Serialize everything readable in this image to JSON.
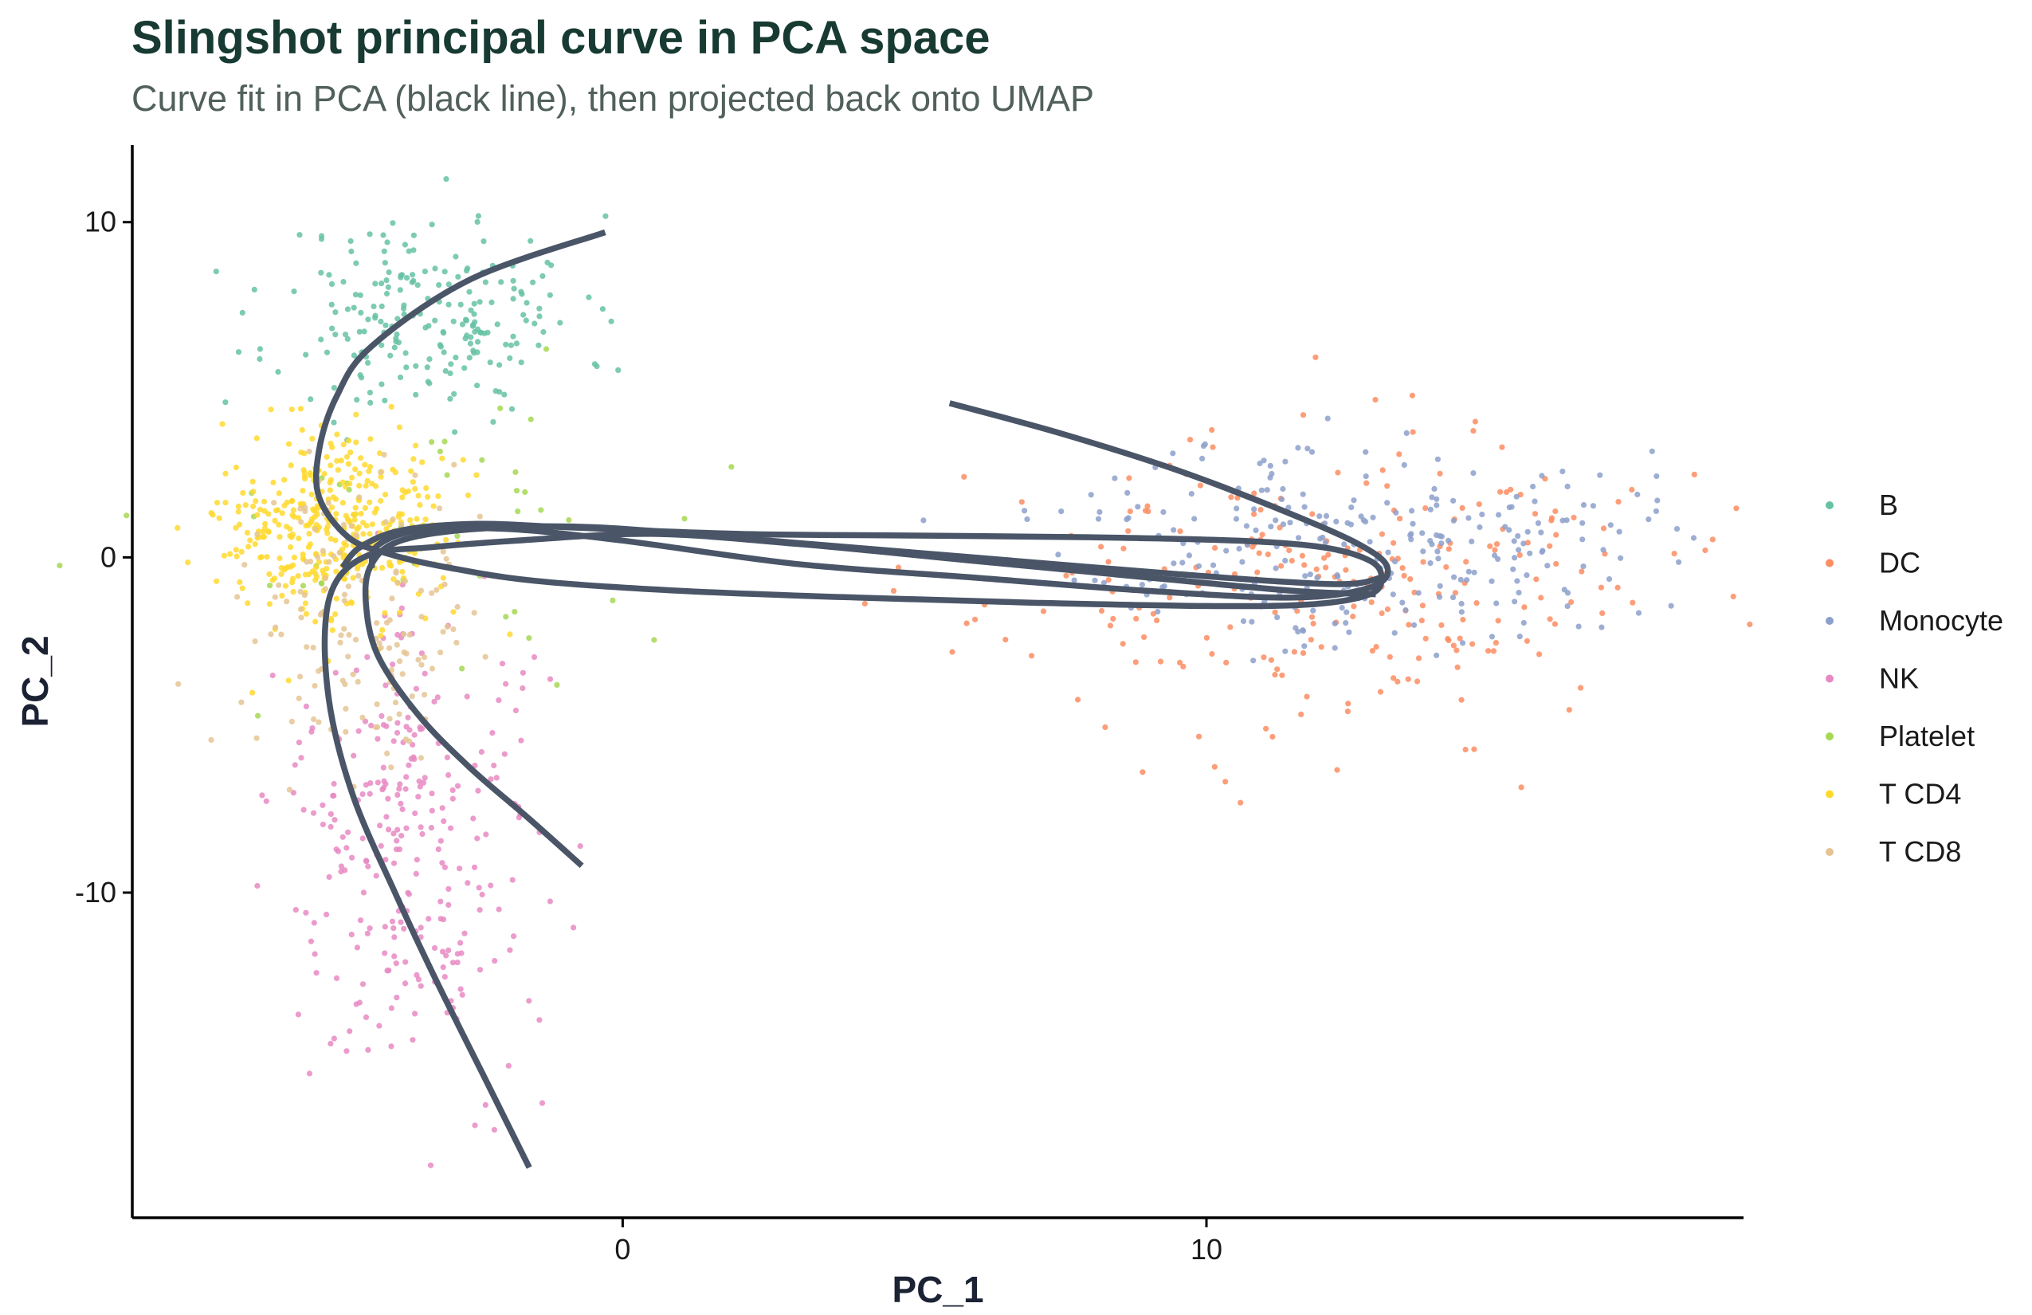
{
  "chart_data": {
    "type": "scatter",
    "title": "Slingshot principal curve in PCA space",
    "subtitle": "Curve fit in PCA (black line), then projected back onto UMAP",
    "xlabel": "PC_1",
    "ylabel": "PC_2",
    "xlim": [
      -8.4,
      19.2
    ],
    "ylim": [
      -19.7,
      12.3
    ],
    "x_ticks": [
      0,
      10
    ],
    "y_ticks": [
      -10,
      0,
      10
    ],
    "grid": false,
    "legend_position": "right",
    "series": [
      {
        "name": "B",
        "color": "#66c2a5",
        "center": [
          -3.3,
          7.2
        ],
        "spread": [
          1.3,
          1.5
        ],
        "n": 220,
        "seed": 11
      },
      {
        "name": "DC",
        "color": "#fc8d62",
        "center": [
          12.0,
          -0.8
        ],
        "spread": [
          2.9,
          2.2
        ],
        "n": 260,
        "seed": 23
      },
      {
        "name": "Monocyte",
        "color": "#8da0cb",
        "center": [
          12.6,
          0.5
        ],
        "spread": [
          2.4,
          1.5
        ],
        "n": 270,
        "seed": 37
      },
      {
        "name": "NK",
        "color": "#e78ac3",
        "center": [
          -3.6,
          -8.4
        ],
        "spread": [
          1.1,
          3.4
        ],
        "n": 280,
        "seed": 41
      },
      {
        "name": "Platelet",
        "color": "#a6d854",
        "center": [
          -3.0,
          1.0
        ],
        "spread": [
          2.5,
          2.4
        ],
        "n": 45,
        "seed": 53
      },
      {
        "name": "T CD4",
        "color": "#ffd92f",
        "center": [
          -5.0,
          0.7
        ],
        "spread": [
          0.9,
          1.4
        ],
        "n": 380,
        "seed": 67
      },
      {
        "name": "T CD8",
        "color": "#e5c494",
        "center": [
          -4.5,
          -1.5
        ],
        "spread": [
          1.0,
          2.2
        ],
        "n": 150,
        "seed": 79
      }
    ],
    "curves": [
      {
        "name": "curve-to-B",
        "color": "#4a5568",
        "points": [
          [
            -0.3,
            9.7
          ],
          [
            -2.6,
            8.3
          ],
          [
            -4.3,
            6.3
          ],
          [
            -4.9,
            4.8
          ],
          [
            -5.2,
            3.2
          ],
          [
            -5.2,
            1.8
          ],
          [
            -4.7,
            0.6
          ],
          [
            -4.0,
            0.1
          ],
          [
            -3.0,
            -0.3
          ],
          [
            -1.5,
            -0.7
          ],
          [
            1.0,
            -1.0
          ],
          [
            4.0,
            -1.2
          ],
          [
            7.0,
            -1.35
          ],
          [
            10.0,
            -1.45
          ],
          [
            11.8,
            -1.4
          ],
          [
            12.8,
            -1.1
          ],
          [
            13.0,
            -0.6
          ],
          [
            12.8,
            -0.1
          ],
          [
            12.0,
            0.3
          ],
          [
            10.5,
            0.5
          ],
          [
            8.0,
            0.6
          ],
          [
            5.0,
            0.65
          ],
          [
            2.0,
            0.7
          ],
          [
            -1.0,
            0.9
          ],
          [
            -2.5,
            1.0
          ],
          [
            -3.8,
            0.8
          ],
          [
            -4.5,
            0.3
          ],
          [
            -4.8,
            -0.3
          ]
        ]
      },
      {
        "name": "curve-to-Monocyte",
        "color": "#4a5568",
        "points": [
          [
            5.6,
            4.6
          ],
          [
            7.5,
            3.7
          ],
          [
            9.5,
            2.6
          ],
          [
            11.3,
            1.4
          ],
          [
            12.6,
            0.4
          ],
          [
            13.1,
            -0.3
          ],
          [
            12.8,
            -0.9
          ],
          [
            11.5,
            -1.2
          ],
          [
            9.0,
            -1.0
          ],
          [
            6.0,
            -0.6
          ],
          [
            3.0,
            -0.2
          ],
          [
            0.0,
            0.5
          ],
          [
            -2.0,
            0.85
          ],
          [
            -3.5,
            0.8
          ],
          [
            -4.2,
            0.35
          ],
          [
            -4.3,
            -0.3
          ]
        ]
      },
      {
        "name": "curve-to-NK",
        "color": "#4a5568",
        "points": [
          [
            -1.6,
            -18.2
          ],
          [
            -2.4,
            -15.4
          ],
          [
            -3.2,
            -12.6
          ],
          [
            -3.9,
            -10.0
          ],
          [
            -4.6,
            -7.2
          ],
          [
            -5.0,
            -4.6
          ],
          [
            -5.1,
            -2.2
          ],
          [
            -4.9,
            -0.7
          ],
          [
            -4.3,
            0.1
          ],
          [
            -3.3,
            0.3
          ],
          [
            -1.8,
            0.5
          ],
          [
            0.5,
            0.7
          ],
          [
            3.0,
            0.4
          ],
          [
            6.0,
            -0.1
          ],
          [
            9.0,
            -0.6
          ],
          [
            11.5,
            -1.0
          ],
          [
            12.9,
            -1.1
          ]
        ]
      },
      {
        "name": "curve-to-T",
        "color": "#4a5568",
        "points": [
          [
            -0.7,
            -9.2
          ],
          [
            -1.6,
            -7.8
          ],
          [
            -2.6,
            -6.3
          ],
          [
            -3.5,
            -4.7
          ],
          [
            -4.2,
            -2.9
          ],
          [
            -4.4,
            -1.3
          ],
          [
            -4.3,
            -0.2
          ],
          [
            -3.8,
            0.5
          ],
          [
            -2.5,
            0.85
          ],
          [
            -0.5,
            0.9
          ],
          [
            2.5,
            0.5
          ],
          [
            6.0,
            0.0
          ],
          [
            9.5,
            -0.5
          ],
          [
            12.2,
            -0.8
          ],
          [
            13.0,
            -0.6
          ]
        ]
      }
    ]
  }
}
